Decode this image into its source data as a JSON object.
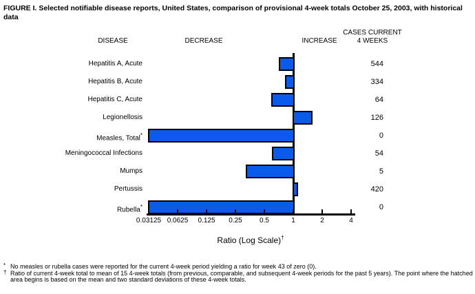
{
  "title": "FIGURE I. Selected notifiable disease reports, United States, comparison of provisional 4-week totals October 25, 2003, with historical data",
  "columns": {
    "disease": "DISEASE",
    "decrease": "DECREASE",
    "increase": "INCREASE",
    "cases_line1": "CASES CURRENT",
    "cases_line2": "4 WEEKS"
  },
  "chart_data": {
    "type": "bar",
    "orientation": "horizontal",
    "scale": "log2",
    "title": "Selected notifiable disease reports, ratio of current 4-week total to historical mean",
    "xlabel": "Ratio (Log Scale)",
    "bar_color": "#0A5AEB",
    "bar_border_color": "#000000",
    "axis": {
      "label": "Ratio (Log Scale)",
      "label_sup": "†",
      "min": 0.03125,
      "max": 4,
      "baseline": 1,
      "ticks": [
        0.03125,
        0.0625,
        0.125,
        0.25,
        0.5,
        1,
        2,
        4
      ],
      "tick_labels": [
        "0.03125",
        "0.0625",
        "0.125",
        "0.25",
        "0.5",
        "1",
        "2",
        "4"
      ]
    },
    "rows": [
      {
        "disease": "Hepatitis A, Acute",
        "sup": "",
        "ratio": 0.71,
        "cases": "544"
      },
      {
        "disease": "Hepatitis B, Acute",
        "sup": "",
        "ratio": 0.82,
        "cases": "334"
      },
      {
        "disease": "Hepatitis C, Acute",
        "sup": "",
        "ratio": 0.59,
        "cases": "64"
      },
      {
        "disease": "Legionellosis",
        "sup": "",
        "ratio": 1.6,
        "cases": "126"
      },
      {
        "disease": "Measles, Total",
        "sup": "*",
        "ratio": 0,
        "cases": "0"
      },
      {
        "disease": "Meningococcal Infections",
        "sup": "",
        "ratio": 0.6,
        "cases": "54"
      },
      {
        "disease": "Mumps",
        "sup": "",
        "ratio": 0.32,
        "cases": "5"
      },
      {
        "disease": "Pertussis",
        "sup": "",
        "ratio": 1.13,
        "cases": "420"
      },
      {
        "disease": "Rubella",
        "sup": "*",
        "ratio": 0,
        "cases": "0"
      }
    ]
  },
  "footnotes": [
    {
      "marker": "*",
      "text": "No measles or rubella cases were reported for the current 4-week period yielding a ratio for week 43 of zero (0)."
    },
    {
      "marker": "†",
      "text": "Ratio of current 4-week total to mean of 15 4-week totals (from previous, comparable, and subsequent 4-week periods for the past 5 years). The point where the hatched area begins is based on the mean and two standard deviations of these 4-week totals."
    }
  ]
}
